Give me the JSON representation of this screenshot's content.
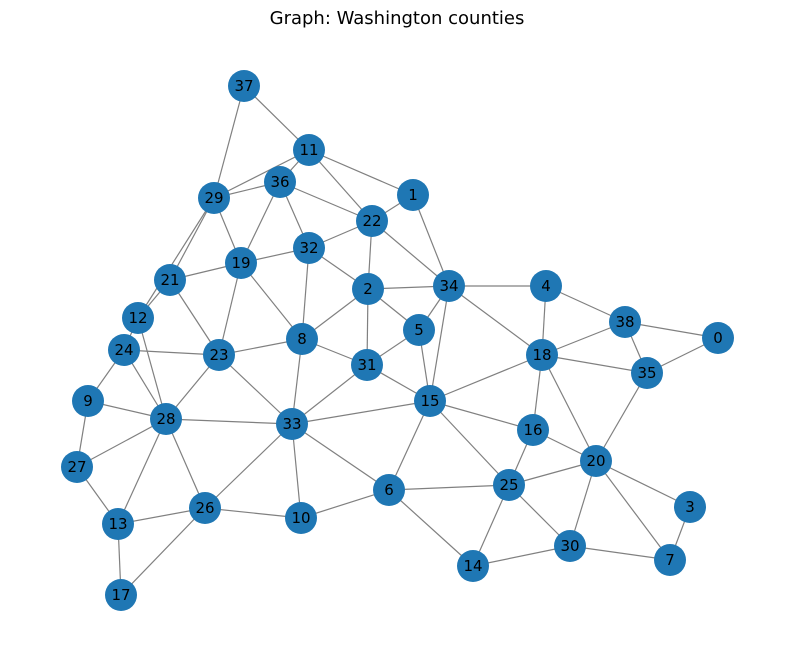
{
  "title": "Graph: Washington counties",
  "colors": {
    "node": "#1f77b4",
    "edge": "#808080",
    "label": "#000000"
  },
  "nodes": [
    "0",
    "1",
    "2",
    "3",
    "4",
    "5",
    "6",
    "7",
    "8",
    "9",
    "10",
    "11",
    "12",
    "13",
    "14",
    "15",
    "16",
    "17",
    "18",
    "19",
    "20",
    "21",
    "22",
    "23",
    "24",
    "25",
    "26",
    "27",
    "28",
    "29",
    "30",
    "31",
    "32",
    "33",
    "34",
    "35",
    "36",
    "37",
    "38"
  ],
  "edges": [
    [
      "37",
      "11"
    ],
    [
      "37",
      "29"
    ],
    [
      "11",
      "29"
    ],
    [
      "11",
      "36"
    ],
    [
      "11",
      "22"
    ],
    [
      "11",
      "1"
    ],
    [
      "36",
      "29"
    ],
    [
      "36",
      "22"
    ],
    [
      "36",
      "32"
    ],
    [
      "36",
      "19"
    ],
    [
      "29",
      "19"
    ],
    [
      "29",
      "21"
    ],
    [
      "29",
      "12"
    ],
    [
      "1",
      "22"
    ],
    [
      "1",
      "34"
    ],
    [
      "22",
      "32"
    ],
    [
      "22",
      "2"
    ],
    [
      "22",
      "34"
    ],
    [
      "32",
      "19"
    ],
    [
      "32",
      "2"
    ],
    [
      "32",
      "8"
    ],
    [
      "19",
      "21"
    ],
    [
      "19",
      "23"
    ],
    [
      "19",
      "8"
    ],
    [
      "21",
      "12"
    ],
    [
      "21",
      "23"
    ],
    [
      "12",
      "24"
    ],
    [
      "12",
      "28"
    ],
    [
      "2",
      "34"
    ],
    [
      "2",
      "5"
    ],
    [
      "2",
      "31"
    ],
    [
      "2",
      "8"
    ],
    [
      "34",
      "4"
    ],
    [
      "34",
      "5"
    ],
    [
      "34",
      "15"
    ],
    [
      "34",
      "18"
    ],
    [
      "4",
      "18"
    ],
    [
      "4",
      "38"
    ],
    [
      "38",
      "0"
    ],
    [
      "38",
      "18"
    ],
    [
      "38",
      "35"
    ],
    [
      "0",
      "35"
    ],
    [
      "5",
      "31"
    ],
    [
      "5",
      "15"
    ],
    [
      "8",
      "23"
    ],
    [
      "8",
      "31"
    ],
    [
      "8",
      "33"
    ],
    [
      "18",
      "35"
    ],
    [
      "18",
      "15"
    ],
    [
      "18",
      "16"
    ],
    [
      "18",
      "20"
    ],
    [
      "35",
      "20"
    ],
    [
      "24",
      "23"
    ],
    [
      "24",
      "9"
    ],
    [
      "24",
      "28"
    ],
    [
      "23",
      "28"
    ],
    [
      "23",
      "33"
    ],
    [
      "31",
      "15"
    ],
    [
      "31",
      "33"
    ],
    [
      "9",
      "28"
    ],
    [
      "9",
      "27"
    ],
    [
      "28",
      "27"
    ],
    [
      "28",
      "13"
    ],
    [
      "28",
      "26"
    ],
    [
      "28",
      "33"
    ],
    [
      "33",
      "15"
    ],
    [
      "33",
      "26"
    ],
    [
      "33",
      "10"
    ],
    [
      "33",
      "6"
    ],
    [
      "15",
      "16"
    ],
    [
      "15",
      "6"
    ],
    [
      "15",
      "25"
    ],
    [
      "16",
      "20"
    ],
    [
      "16",
      "25"
    ],
    [
      "20",
      "25"
    ],
    [
      "20",
      "30"
    ],
    [
      "20",
      "7"
    ],
    [
      "20",
      "3"
    ],
    [
      "27",
      "13"
    ],
    [
      "13",
      "17"
    ],
    [
      "13",
      "26"
    ],
    [
      "26",
      "17"
    ],
    [
      "26",
      "10"
    ],
    [
      "10",
      "6"
    ],
    [
      "6",
      "25"
    ],
    [
      "6",
      "14"
    ],
    [
      "25",
      "14"
    ],
    [
      "25",
      "30"
    ],
    [
      "14",
      "30"
    ],
    [
      "30",
      "7"
    ],
    [
      "7",
      "3"
    ]
  ]
}
